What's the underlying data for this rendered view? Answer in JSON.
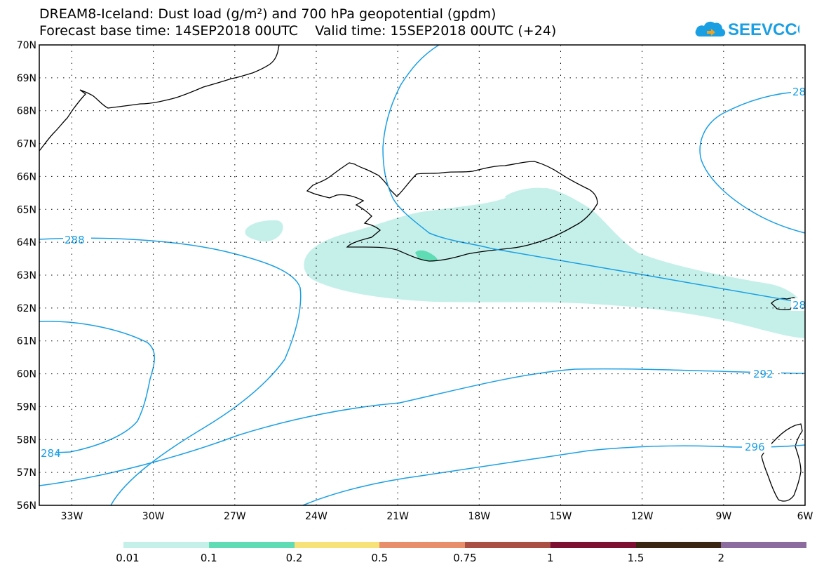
{
  "title": {
    "line1": "DREAM8-Iceland: Dust load (g/m²) and 700 hPa geopotential (gpdm)",
    "line2": "Forecast base time: 14SEP2018 00UTC    Valid time: 15SEP2018 00UTC (+24)"
  },
  "logo": {
    "text": "SEEVCCC",
    "color": "#1a9fe3",
    "icon": "cloud-icon"
  },
  "map": {
    "lat_ticks": [
      "70N",
      "69N",
      "68N",
      "67N",
      "66N",
      "65N",
      "64N",
      "63N",
      "62N",
      "61N",
      "60N",
      "59N",
      "58N",
      "57N",
      "56N"
    ],
    "lon_ticks": [
      "33W",
      "30W",
      "27W",
      "24W",
      "21W",
      "18W",
      "15W",
      "12W",
      "9W",
      "6W"
    ],
    "lat_range": [
      56,
      70
    ],
    "lon_range": [
      -34.2,
      -6
    ],
    "contour_color": "#1a9fe3",
    "contour_labels": [
      "288",
      "288",
      "284",
      "292",
      "296",
      "28",
      "28"
    ]
  },
  "legend": {
    "colors": [
      "#c5f0ea",
      "#5fdcb4",
      "#f7e27a",
      "#e88e6a",
      "#a94f44",
      "#7d0f33",
      "#3b2614",
      "#8c6c9e"
    ],
    "labels": [
      "0.01",
      "0.1",
      "0.2",
      "0.5",
      "0.75",
      "1",
      "1.5",
      "2"
    ]
  }
}
